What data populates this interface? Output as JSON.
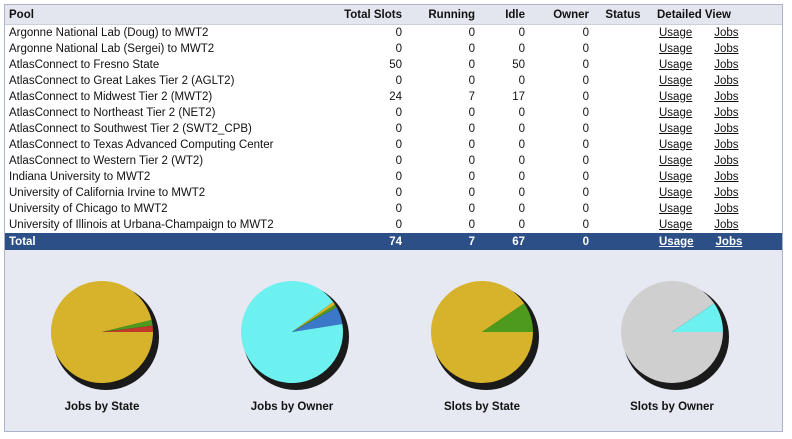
{
  "table": {
    "headers": {
      "pool": "Pool",
      "total_slots": "Total Slots",
      "running": "Running",
      "idle": "Idle",
      "owner": "Owner",
      "status": "Status",
      "detailed_view": "Detailed View"
    },
    "rows": [
      {
        "pool": "Argonne National Lab (Doug) to MWT2",
        "total": "0",
        "running": "0",
        "idle": "0",
        "owner": "0",
        "status": "",
        "usage": "Usage",
        "jobs": "Jobs"
      },
      {
        "pool": "Argonne National Lab (Sergei) to MWT2",
        "total": "0",
        "running": "0",
        "idle": "0",
        "owner": "0",
        "status": "",
        "usage": "Usage",
        "jobs": "Jobs"
      },
      {
        "pool": "AtlasConnect to Fresno State",
        "total": "50",
        "running": "0",
        "idle": "50",
        "owner": "0",
        "status": "",
        "usage": "Usage",
        "jobs": "Jobs"
      },
      {
        "pool": "AtlasConnect to Great Lakes Tier 2 (AGLT2)",
        "total": "0",
        "running": "0",
        "idle": "0",
        "owner": "0",
        "status": "",
        "usage": "Usage",
        "jobs": "Jobs"
      },
      {
        "pool": "AtlasConnect to Midwest Tier 2 (MWT2)",
        "total": "24",
        "running": "7",
        "idle": "17",
        "owner": "0",
        "status": "",
        "usage": "Usage",
        "jobs": "Jobs"
      },
      {
        "pool": "AtlasConnect to Northeast Tier 2 (NET2)",
        "total": "0",
        "running": "0",
        "idle": "0",
        "owner": "0",
        "status": "",
        "usage": "Usage",
        "jobs": "Jobs"
      },
      {
        "pool": "AtlasConnect to Southwest Tier 2 (SWT2_CPB)",
        "total": "0",
        "running": "0",
        "idle": "0",
        "owner": "0",
        "status": "",
        "usage": "Usage",
        "jobs": "Jobs"
      },
      {
        "pool": "AtlasConnect to Texas Advanced Computing Center",
        "total": "0",
        "running": "0",
        "idle": "0",
        "owner": "0",
        "status": "",
        "usage": "Usage",
        "jobs": "Jobs"
      },
      {
        "pool": "AtlasConnect to Western Tier 2 (WT2)",
        "total": "0",
        "running": "0",
        "idle": "0",
        "owner": "0",
        "status": "",
        "usage": "Usage",
        "jobs": "Jobs"
      },
      {
        "pool": "Indiana University to MWT2",
        "total": "0",
        "running": "0",
        "idle": "0",
        "owner": "0",
        "status": "",
        "usage": "Usage",
        "jobs": "Jobs"
      },
      {
        "pool": "University of California Irvine to MWT2",
        "total": "0",
        "running": "0",
        "idle": "0",
        "owner": "0",
        "status": "",
        "usage": "Usage",
        "jobs": "Jobs"
      },
      {
        "pool": "University of Chicago to MWT2",
        "total": "0",
        "running": "0",
        "idle": "0",
        "owner": "0",
        "status": "",
        "usage": "Usage",
        "jobs": "Jobs"
      },
      {
        "pool": "University of Illinois at Urbana-Champaign to MWT2",
        "total": "0",
        "running": "0",
        "idle": "0",
        "owner": "0",
        "status": "",
        "usage": "Usage",
        "jobs": "Jobs"
      }
    ],
    "total_row": {
      "pool": "Total",
      "total": "74",
      "running": "7",
      "idle": "67",
      "owner": "0",
      "status": "",
      "usage": "Usage",
      "jobs": "Jobs"
    }
  },
  "pies": [
    {
      "label": "Jobs by State",
      "slices": [
        {
          "fraction": 0.962,
          "color": "#d6b32a"
        },
        {
          "fraction": 0.018,
          "color": "#4e9a1c"
        },
        {
          "fraction": 0.02,
          "color": "#c0392b"
        }
      ]
    },
    {
      "label": "Jobs by Owner",
      "slices": [
        {
          "fraction": 0.9,
          "color": "#6cf0f0"
        },
        {
          "fraction": 0.01,
          "color": "#d6b32a"
        },
        {
          "fraction": 0.01,
          "color": "#4e9a1c"
        },
        {
          "fraction": 0.055,
          "color": "#3b78c9"
        },
        {
          "fraction": 0.025,
          "color": "#6cf0f0"
        }
      ]
    },
    {
      "label": "Slots by State",
      "slices": [
        {
          "fraction": 0.905,
          "color": "#d6b32a"
        },
        {
          "fraction": 0.095,
          "color": "#4e9a1c"
        }
      ]
    },
    {
      "label": "Slots by Owner",
      "slices": [
        {
          "fraction": 0.905,
          "color": "#cfcfcf"
        },
        {
          "fraction": 0.095,
          "color": "#6cf0f0"
        }
      ]
    }
  ]
}
